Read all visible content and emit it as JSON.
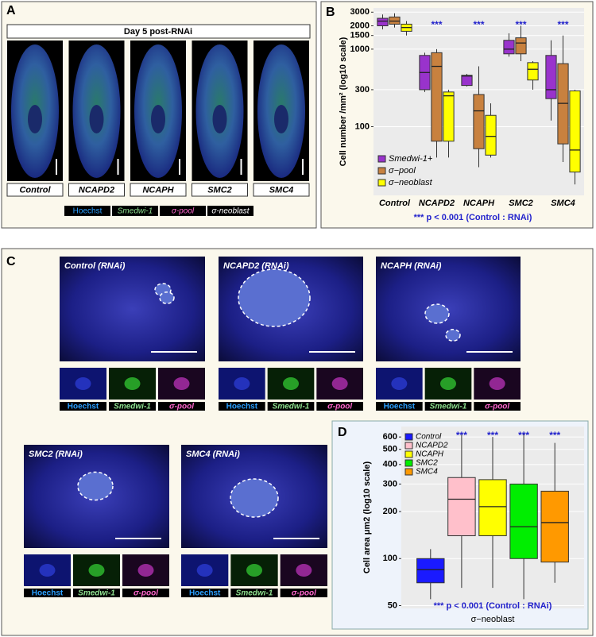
{
  "panels": {
    "A": {
      "letter": "A",
      "title": "Day 5 post-RNAi",
      "images": [
        "Control",
        "NCAPD2",
        "NCAPH",
        "SMC2",
        "SMC4"
      ],
      "channels": [
        "Hoechst",
        "Smedwi-1",
        "σ-pool",
        "σ-neoblast"
      ]
    },
    "C": {
      "letter": "C",
      "images": [
        {
          "title": "Control (RNAi)",
          "channels": [
            "Hoechst",
            "Smedwi-1",
            "σ-pool"
          ]
        },
        {
          "title": "NCAPD2 (RNAi)",
          "channels": [
            "Hoechst",
            "Smedwi-1",
            "σ-pool"
          ]
        },
        {
          "title": "NCAPH (RNAi)",
          "channels": [
            "Hoechst",
            "Smedwi-1",
            "σ-pool"
          ]
        },
        {
          "title": "SMC2 (RNAi)",
          "channels": [
            "Hoechst",
            "Smedwi-1",
            "σ-pool"
          ]
        },
        {
          "title": "SMC4 (RNAi)",
          "channels": [
            "Hoechst",
            "Smedwi-1",
            "σ-pool"
          ]
        }
      ]
    }
  },
  "chart_data": [
    {
      "type": "box",
      "letter": "B",
      "ylabel": "Cell number /mm² (log10 scale)",
      "log_scale": true,
      "ylim": [
        13,
        3400
      ],
      "yticks": [
        100,
        300,
        1000,
        1500,
        2000,
        3000
      ],
      "grid": true,
      "legend": "bottom-left",
      "categories": [
        "Control",
        "NCAPD2",
        "NCAPH",
        "SMC2",
        "SMC4"
      ],
      "significance": [
        null,
        "***",
        "***",
        "***",
        "***"
      ],
      "note": "*** p < 0.001 (Control : RNAi)",
      "series": [
        {
          "name": "Smedwi-1+",
          "color": "#9933cc",
          "values": [
            {
              "min": 1800,
              "q1": 2000,
              "median": 2300,
              "q3": 2500,
              "max": 2800
            },
            {
              "min": 280,
              "q1": 300,
              "median": 500,
              "q3": 830,
              "max": 900
            },
            {
              "min": 330,
              "q1": 340,
              "median": 450,
              "q3": 460,
              "max": 480
            },
            {
              "min": 800,
              "q1": 870,
              "median": 1000,
              "q3": 1300,
              "max": 1600
            },
            {
              "min": 120,
              "q1": 230,
              "median": 300,
              "q3": 830,
              "max": 1300
            }
          ]
        },
        {
          "name": "σ−pool",
          "color": "#c8813f",
          "values": [
            {
              "min": 1900,
              "q1": 2100,
              "median": 2300,
              "q3": 2600,
              "max": 2900
            },
            {
              "min": 40,
              "q1": 65,
              "median": 600,
              "q3": 900,
              "max": 1000
            },
            {
              "min": 30,
              "q1": 52,
              "median": 160,
              "q3": 260,
              "max": 600
            },
            {
              "min": 700,
              "q1": 870,
              "median": 1200,
              "q3": 1400,
              "max": 2000
            },
            {
              "min": 35,
              "q1": 60,
              "median": 200,
              "q3": 650,
              "max": 1500
            }
          ]
        },
        {
          "name": "σ−neoblast",
          "color": "#ffff00",
          "values": [
            {
              "min": 1500,
              "q1": 1700,
              "median": 1900,
              "q3": 2100,
              "max": 2300
            },
            {
              "min": 40,
              "q1": 65,
              "median": 250,
              "q3": 280,
              "max": 300
            },
            {
              "min": 40,
              "q1": 43,
              "median": 75,
              "q3": 140,
              "max": 200
            },
            {
              "min": 300,
              "q1": 400,
              "median": 550,
              "q3": 670,
              "max": 700
            },
            {
              "min": 18,
              "q1": 26,
              "median": 50,
              "q3": 290,
              "max": 300
            }
          ]
        }
      ]
    },
    {
      "type": "box",
      "letter": "D",
      "ylabel": "Cell area μm2 (log10 scale)",
      "xlabel": "σ−neoblast",
      "log_scale": true,
      "ylim": [
        48,
        700
      ],
      "yticks": [
        50,
        100,
        200,
        300,
        400,
        500,
        600
      ],
      "grid": true,
      "legend": "top-left",
      "categories": [
        "σ−neoblast"
      ],
      "note": "*** p < 0.001 (Control : RNAi)",
      "series": [
        {
          "name": "Control",
          "color": "#1a1aff",
          "values": [
            {
              "min": 55,
              "q1": 70,
              "median": 85,
              "q3": 100,
              "max": 115
            }
          ]
        },
        {
          "name": "NCAPD2",
          "color": "#ffc0cb",
          "significance": "***",
          "values": [
            {
              "min": 65,
              "q1": 140,
              "median": 240,
              "q3": 330,
              "max": 620
            }
          ]
        },
        {
          "name": "NCAPH",
          "color": "#ffff00",
          "significance": "***",
          "values": [
            {
              "min": 65,
              "q1": 140,
              "median": 215,
              "q3": 320,
              "max": 600
            }
          ]
        },
        {
          "name": "SMC2",
          "color": "#00ee00",
          "significance": "***",
          "values": [
            {
              "min": 55,
              "q1": 100,
              "median": 160,
              "q3": 300,
              "max": 650
            }
          ]
        },
        {
          "name": "SMC4",
          "color": "#ff9900",
          "significance": "***",
          "values": [
            {
              "min": 70,
              "q1": 95,
              "median": 170,
              "q3": 270,
              "max": 550
            }
          ]
        }
      ]
    }
  ]
}
